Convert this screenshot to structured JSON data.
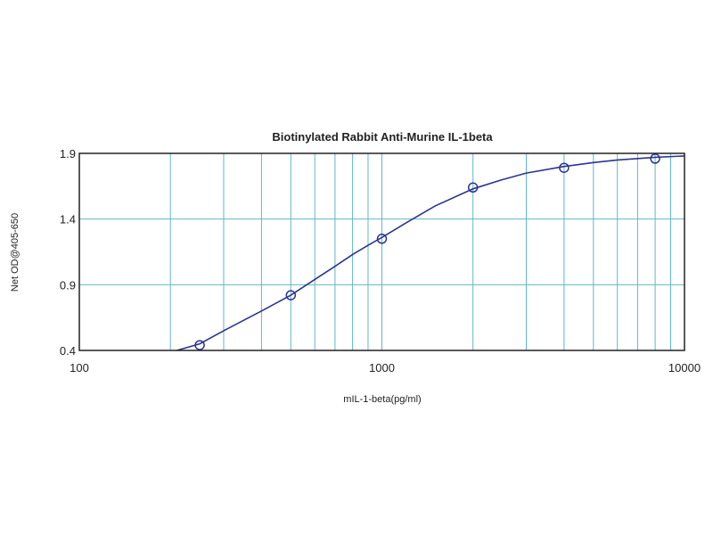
{
  "chart_data": {
    "type": "scatter",
    "title": "Biotinylated Rabbit Anti-Murine IL-1beta",
    "xlabel": "mIL-1-beta(pg/ml)",
    "ylabel": "Net OD@405-650",
    "x_scale": "log",
    "xlim": [
      100,
      10000
    ],
    "ylim": [
      0.4,
      1.9
    ],
    "x_tick_labels": [
      "100",
      "1000",
      "10000"
    ],
    "y_tick_labels": [
      "0.4",
      "0.9",
      "1.4",
      "1.9"
    ],
    "grid": true,
    "series": [
      {
        "kind": "points",
        "x": [
          250,
          500,
          1000,
          2000,
          4000,
          8000
        ],
        "y": [
          0.44,
          0.82,
          1.25,
          1.64,
          1.79,
          1.86
        ]
      },
      {
        "kind": "fitted-curve",
        "x": [
          210,
          250,
          300,
          350,
          400,
          500,
          600,
          700,
          800,
          900,
          1000,
          1200,
          1500,
          2000,
          2500,
          3000,
          4000,
          5000,
          6000,
          8000,
          10000
        ],
        "y": [
          0.4,
          0.45,
          0.55,
          0.63,
          0.7,
          0.82,
          0.94,
          1.04,
          1.13,
          1.2,
          1.26,
          1.37,
          1.5,
          1.63,
          1.7,
          1.75,
          1.8,
          1.83,
          1.85,
          1.87,
          1.88
        ]
      }
    ],
    "colors": {
      "grid": "#5fb8c8",
      "curve": "#2a3590",
      "marker": "#2a3590",
      "frame": "#222222"
    }
  }
}
